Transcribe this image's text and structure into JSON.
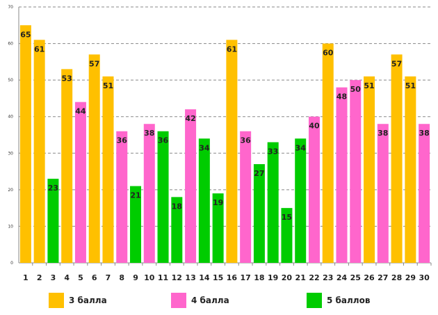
{
  "chart_data": {
    "type": "bar",
    "title": "",
    "xlabel": "",
    "ylabel": "",
    "ylim": [
      0,
      70
    ],
    "yticks": [
      0,
      10,
      20,
      30,
      40,
      50,
      60,
      70
    ],
    "grid": true,
    "legend_position": "bottom",
    "categories": [
      "1",
      "2",
      "3",
      "4",
      "5",
      "6",
      "7",
      "8",
      "9",
      "10",
      "11",
      "12",
      "13",
      "14",
      "15",
      "16",
      "17",
      "18",
      "19",
      "20",
      "21",
      "22",
      "23",
      "24",
      "25",
      "26",
      "27",
      "28",
      "29",
      "30"
    ],
    "values": [
      65,
      61,
      23,
      53,
      44,
      57,
      51,
      36,
      21,
      38,
      36,
      18,
      42,
      34,
      19,
      61,
      36,
      27,
      33,
      15,
      34,
      40,
      60,
      48,
      50,
      51,
      38,
      57,
      51,
      38
    ],
    "groups": [
      0,
      0,
      2,
      0,
      1,
      0,
      0,
      1,
      2,
      1,
      2,
      2,
      1,
      2,
      2,
      0,
      1,
      2,
      2,
      2,
      2,
      1,
      0,
      1,
      1,
      0,
      1,
      0,
      0,
      1
    ],
    "legend": [
      {
        "label": "3 балла",
        "color": "#FFC000"
      },
      {
        "label": "4 балла",
        "color": "#FF66CC"
      },
      {
        "label": "5 баллов",
        "color": "#00CC00"
      }
    ]
  }
}
